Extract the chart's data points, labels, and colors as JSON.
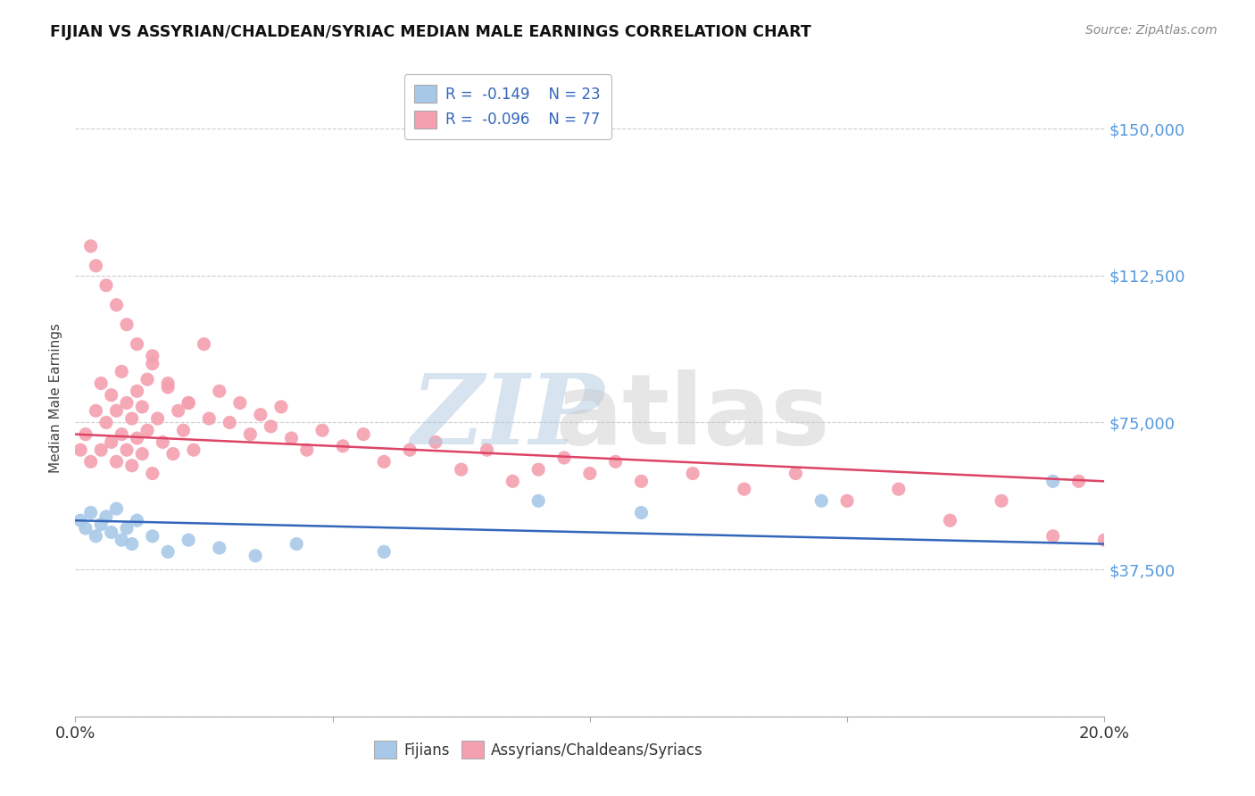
{
  "title": "FIJIAN VS ASSYRIAN/CHALDEAN/SYRIAC MEDIAN MALE EARNINGS CORRELATION CHART",
  "source": "Source: ZipAtlas.com",
  "ylabel": "Median Male Earnings",
  "xlim": [
    0.0,
    0.2
  ],
  "ylim": [
    0,
    162500
  ],
  "yticks": [
    0,
    37500,
    75000,
    112500,
    150000
  ],
  "ytick_labels": [
    "",
    "$37,500",
    "$75,000",
    "$112,500",
    "$150,000"
  ],
  "xticks": [
    0.0,
    0.05,
    0.1,
    0.15,
    0.2
  ],
  "xtick_labels": [
    "0.0%",
    "",
    "",
    "",
    "20.0%"
  ],
  "background_color": "#ffffff",
  "grid_color": "#c8c8c8",
  "fijian_color": "#a8c8e8",
  "assyrian_color": "#f4a0b0",
  "fijian_line_color": "#3366bb",
  "assyrian_line_color": "#dd4466",
  "legend_fijian_R": "-0.149",
  "legend_fijian_N": "23",
  "legend_assyrian_R": "-0.096",
  "legend_assyrian_N": "77",
  "fijian_x": [
    0.001,
    0.002,
    0.003,
    0.004,
    0.005,
    0.006,
    0.007,
    0.008,
    0.009,
    0.01,
    0.011,
    0.012,
    0.015,
    0.018,
    0.022,
    0.028,
    0.035,
    0.043,
    0.06,
    0.09,
    0.11,
    0.145,
    0.19
  ],
  "fijian_y": [
    50000,
    48000,
    52000,
    46000,
    49000,
    51000,
    47000,
    53000,
    45000,
    48000,
    44000,
    50000,
    46000,
    42000,
    45000,
    43000,
    41000,
    44000,
    42000,
    55000,
    52000,
    55000,
    60000
  ],
  "assyrian_x": [
    0.001,
    0.002,
    0.003,
    0.004,
    0.005,
    0.005,
    0.006,
    0.007,
    0.007,
    0.008,
    0.008,
    0.009,
    0.009,
    0.01,
    0.01,
    0.011,
    0.011,
    0.012,
    0.012,
    0.013,
    0.013,
    0.014,
    0.014,
    0.015,
    0.015,
    0.016,
    0.017,
    0.018,
    0.019,
    0.02,
    0.021,
    0.022,
    0.023,
    0.025,
    0.026,
    0.028,
    0.03,
    0.032,
    0.034,
    0.036,
    0.038,
    0.04,
    0.042,
    0.045,
    0.048,
    0.052,
    0.056,
    0.06,
    0.065,
    0.07,
    0.075,
    0.08,
    0.085,
    0.09,
    0.095,
    0.1,
    0.105,
    0.11,
    0.12,
    0.13,
    0.14,
    0.15,
    0.16,
    0.17,
    0.18,
    0.19,
    0.195,
    0.2,
    0.003,
    0.004,
    0.006,
    0.008,
    0.01,
    0.012,
    0.015,
    0.018,
    0.022
  ],
  "assyrian_y": [
    68000,
    72000,
    65000,
    78000,
    85000,
    68000,
    75000,
    82000,
    70000,
    78000,
    65000,
    88000,
    72000,
    80000,
    68000,
    76000,
    64000,
    83000,
    71000,
    79000,
    67000,
    86000,
    73000,
    92000,
    62000,
    76000,
    70000,
    84000,
    67000,
    78000,
    73000,
    80000,
    68000,
    95000,
    76000,
    83000,
    75000,
    80000,
    72000,
    77000,
    74000,
    79000,
    71000,
    68000,
    73000,
    69000,
    72000,
    65000,
    68000,
    70000,
    63000,
    68000,
    60000,
    63000,
    66000,
    62000,
    65000,
    60000,
    62000,
    58000,
    62000,
    55000,
    58000,
    50000,
    55000,
    46000,
    60000,
    45000,
    120000,
    115000,
    110000,
    105000,
    100000,
    95000,
    90000,
    85000,
    80000
  ]
}
